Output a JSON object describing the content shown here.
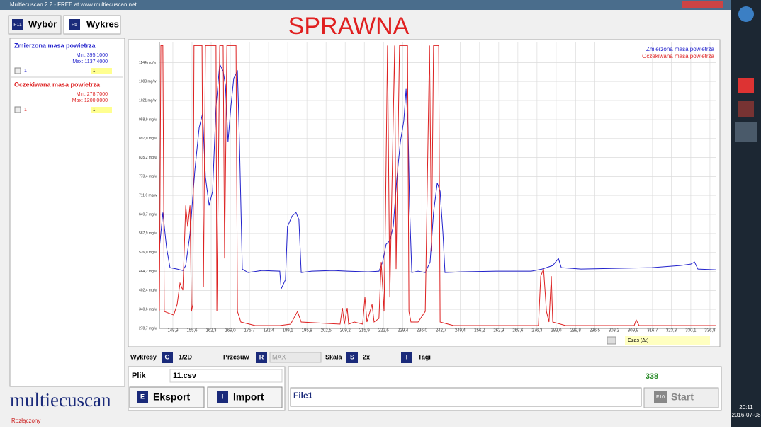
{
  "window": {
    "title": "Multiecuscan 2.2 - FREE at www.multiecuscan.net"
  },
  "tabs": [
    {
      "key": "F11",
      "label": "Wybór"
    },
    {
      "key": "F5",
      "label": "Wykres"
    }
  ],
  "heading": "SPRAWNA",
  "sidebar": [
    {
      "min": "Min: 395,1000",
      "max": "Max: 1137,4000",
      "check": "1",
      "select": "1"
    },
    {
      "min": "Min: 278,7000",
      "max": "Max: 1200,0000",
      "check": "1",
      "select": "1"
    }
  ],
  "logo": "multiecuscan",
  "chart_data": {
    "type": "line",
    "xlim": [
      144.2,
      338.8
    ],
    "ylim": [
      278.7,
      1210
    ],
    "grid": true,
    "legend": "top-right",
    "xticks": [
      {
        "value": 148.9,
        "label": "148,9"
      },
      {
        "value": 155.6,
        "label": "155,6"
      },
      {
        "value": 162.3,
        "label": "162,3"
      },
      {
        "value": 169.0,
        "label": "169,0"
      },
      {
        "value": 175.7,
        "label": "175,7"
      },
      {
        "value": 182.4,
        "label": "182,4"
      },
      {
        "value": 189.1,
        "label": "189,1"
      },
      {
        "value": 195.8,
        "label": "195,8"
      },
      {
        "value": 202.5,
        "label": "202,5"
      },
      {
        "value": 209.2,
        "label": "209,2"
      },
      {
        "value": 215.9,
        "label": "215,9"
      },
      {
        "value": 222.6,
        "label": "222,6"
      },
      {
        "value": 229.4,
        "label": "229,4"
      },
      {
        "value": 236.0,
        "label": "236,0"
      },
      {
        "value": 242.7,
        "label": "242,7"
      },
      {
        "value": 249.4,
        "label": "249,4"
      },
      {
        "value": 256.2,
        "label": "256,2"
      },
      {
        "value": 262.9,
        "label": "262,9"
      },
      {
        "value": 269.6,
        "label": "269,6"
      },
      {
        "value": 276.3,
        "label": "276,3"
      },
      {
        "value": 283.0,
        "label": "283,0"
      },
      {
        "value": 289.8,
        "label": "289,8"
      },
      {
        "value": 296.5,
        "label": "296,5"
      },
      {
        "value": 303.2,
        "label": "303,2"
      },
      {
        "value": 309.9,
        "label": "309,9"
      },
      {
        "value": 316.7,
        "label": "316,7"
      },
      {
        "value": 323.3,
        "label": "323,3"
      },
      {
        "value": 330.1,
        "label": "330,1"
      },
      {
        "value": 336.8,
        "label": "336,8"
      }
    ],
    "yticks": [
      {
        "value": 278.7,
        "label": "278,7 mg/w"
      },
      {
        "value": 340.6,
        "label": "340,6 mg/w"
      },
      {
        "value": 402.4,
        "label": "402,4 mg/w"
      },
      {
        "value": 464.2,
        "label": "464,2 mg/w"
      },
      {
        "value": 526.0,
        "label": "526,0 mg/w"
      },
      {
        "value": 587.9,
        "label": "587,9 mg/w"
      },
      {
        "value": 649.7,
        "label": "649,7 mg/w"
      },
      {
        "value": 711.6,
        "label": "711,6 mg/w"
      },
      {
        "value": 773.4,
        "label": "773,4 mg/w"
      },
      {
        "value": 835.2,
        "label": "835,2 mg/w"
      },
      {
        "value": 897.0,
        "label": "897,0 mg/w"
      },
      {
        "value": 958.9,
        "label": "958,9 mg/w"
      },
      {
        "value": 1021,
        "label": "1021 mg/w"
      },
      {
        "value": 1083,
        "label": "1083 mg/w"
      },
      {
        "value": 1144,
        "label": "1144 mg/w"
      }
    ],
    "series": [
      {
        "name": "Zmierzona masa powietrza",
        "color": "#2222cc",
        "x": [
          144.2,
          145.4,
          146.7,
          147.9,
          150.4,
          152.4,
          153.4,
          154.9,
          156.6,
          158.1,
          159.3,
          160.3,
          161.6,
          162.8,
          164.0,
          165.3,
          166.5,
          167.3,
          168.2,
          169.2,
          170.2,
          171.5,
          172.2,
          173.2,
          175.2,
          180.1,
          186.3,
          186.8,
          188.3,
          189.0,
          190.6,
          192.0,
          193.0,
          193.8,
          197.5,
          204.9,
          209.9,
          217.3,
          221.0,
          222.3,
          223.5,
          224.8,
          226.0,
          227.3,
          228.5,
          229.7,
          230.5,
          231.2,
          231.7,
          232.5,
          234.7,
          237.2,
          238.9,
          240.1,
          241.4,
          242.4,
          243.4,
          244.1,
          249.6,
          262.0,
          274.3,
          278.1,
          281.8,
          283.8,
          284.8,
          291.7,
          304.1,
          316.5,
          326.4,
          330.1,
          331.4,
          332.6,
          338.8
        ],
        "values": [
          541.0,
          656.1,
          541.0,
          476.6,
          472.0,
          467.4,
          483.5,
          587.0,
          794.1,
          932.2,
          978.2,
          771.1,
          679.1,
          725.1,
          1001.2,
          1139.3,
          1116.3,
          1070.2,
          886.2,
          1001.2,
          1093.3,
          1116.3,
          886.2,
          472.0,
          460.5,
          467.4,
          465.1,
          407.6,
          437.5,
          610.0,
          644.6,
          656.1,
          633.1,
          460.5,
          465.1,
          467.4,
          465.1,
          462.8,
          465.1,
          495.0,
          552.5,
          564.0,
          610.0,
          771.1,
          886.2,
          955.2,
          1058.7,
          932.2,
          679.1,
          460.5,
          465.1,
          460.5,
          495.0,
          656.1,
          752.7,
          725.1,
          587.0,
          460.5,
          462.8,
          465.1,
          465.1,
          472.0,
          483.5,
          506.5,
          476.6,
          472.0,
          474.3,
          476.6,
          483.5,
          488.1,
          495.0,
          472.0,
          469.7
        ]
      },
      {
        "name": "Oczekiwana masa powietrza",
        "color": "#dd2222",
        "x": [
          144.2,
          144.7,
          145.4,
          145.9,
          149.2,
          150.4,
          151.4,
          152.4,
          153.4,
          154.1,
          154.9,
          155.4,
          155.9,
          156.3,
          159.1,
          159.6,
          160.3,
          164.0,
          164.3,
          165.3,
          166.5,
          167.0,
          167.8,
          171.0,
          171.5,
          172.7,
          177.7,
          186.3,
          190.1,
          192.5,
          193.8,
          207.4,
          208.2,
          208.9,
          209.9,
          210.4,
          212.4,
          215.3,
          216.1,
          216.8,
          218.6,
          219.3,
          221.0,
          221.8,
          222.8,
          223.3,
          224.0,
          224.8,
          226.5,
          227.0,
          228.2,
          231.0,
          231.5,
          232.2,
          234.7,
          237.2,
          238.7,
          239.4,
          240.1,
          241.9,
          242.4,
          247.1,
          276.8,
          277.6,
          278.6,
          279.6,
          280.5,
          281.3,
          281.8,
          286.3,
          310.3,
          311.0,
          312.0,
          338.8
        ],
        "values": [
          333.9,
          1200,
          1200,
          333.9,
          322.4,
          356.9,
          426.0,
          403.0,
          679.1,
          610.0,
          679.1,
          333.9,
          356.9,
          1200,
          1200,
          414.5,
          1200,
          1200,
          333.9,
          1200,
          1200,
          506.5,
          1200,
          1200,
          333.9,
          299.4,
          287.9,
          287.9,
          292.5,
          333.9,
          299.4,
          292.5,
          345.4,
          292.5,
          345.4,
          292.5,
          299.4,
          292.5,
          379.9,
          299.4,
          356.9,
          299.4,
          310.9,
          495.0,
          333.9,
          656.1,
          1200,
          379.9,
          1200,
          472.0,
          1200,
          1200,
          333.9,
          299.4,
          299.4,
          333.9,
          1200,
          529.5,
          1200,
          1200,
          299.4,
          287.9,
          287.9,
          449.0,
          472.0,
          333.9,
          299.4,
          449.0,
          299.4,
          287.9,
          287.9,
          306.3,
          287.9,
          287.9
        ]
      }
    ]
  },
  "controls": {
    "wykresy": "Wykresy",
    "g": "G",
    "mode": "1/2D",
    "przesuw": "Przesuw",
    "r": "R",
    "max": "MAX",
    "skala": "Skala",
    "s": "S",
    "scale": "2x",
    "t": "T",
    "tagi": "Tagi",
    "time": "Czas (Δt)"
  },
  "file": {
    "label": "Plik",
    "name": "11.csv",
    "e": "E",
    "export": "Eksport",
    "i": "I",
    "import": "Import",
    "field": "File1",
    "count": "338",
    "f10": "F10",
    "start": "Start"
  },
  "status": "Rozłączony",
  "clock": {
    "time": "20:11",
    "date": "2016-07-08"
  }
}
